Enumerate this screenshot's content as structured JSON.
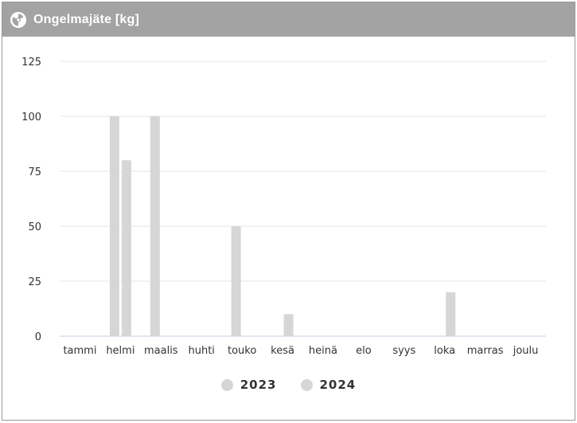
{
  "header": {
    "title": "Ongelmajäte [kg]",
    "icon": "radiation-icon"
  },
  "colors": {
    "header_bg": "#a3a3a3",
    "bar": "#d6d6d6",
    "grid": "#e6e6e6",
    "axis": "#c6cde2"
  },
  "legend": [
    {
      "label": "2023",
      "color": "#d6d6d6"
    },
    {
      "label": "2024",
      "color": "#d6d6d6"
    }
  ],
  "chart_data": {
    "type": "bar",
    "title": "Ongelmajäte [kg]",
    "categories": [
      "tammi",
      "helmi",
      "maalis",
      "huhti",
      "touko",
      "kesä",
      "heinä",
      "elo",
      "syys",
      "loka",
      "marras",
      "joulu"
    ],
    "series": [
      {
        "name": "2023",
        "values": [
          0,
          100,
          100,
          0,
          50,
          0,
          0,
          0,
          0,
          0,
          0,
          0
        ]
      },
      {
        "name": "2024",
        "values": [
          0,
          80,
          0,
          0,
          0,
          10,
          0,
          0,
          0,
          20,
          0,
          0
        ]
      }
    ],
    "ylim": [
      0,
      125
    ],
    "yticks": [
      "0",
      "25",
      "50",
      "75",
      "100",
      "125"
    ],
    "grid": true,
    "legend_position": "bottom"
  }
}
